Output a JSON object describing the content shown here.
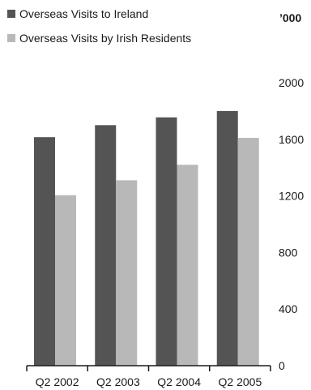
{
  "chart_data": {
    "type": "bar",
    "title": "",
    "xlabel": "",
    "ylabel": "",
    "unit_label": "’000",
    "categories": [
      "Q2 2002",
      "Q2 2003",
      "Q2 2004",
      "Q2 2005"
    ],
    "series": [
      {
        "name": "Overseas Visits to Ireland",
        "color": "#545454",
        "values": [
          1615,
          1700,
          1755,
          1800
        ]
      },
      {
        "name": "Overseas Visits by Irish Residents",
        "color": "#b8b8b8",
        "values": [
          1205,
          1310,
          1420,
          1610
        ]
      }
    ],
    "ylim": [
      0,
      2000
    ],
    "yticks": [
      0,
      400,
      800,
      1200,
      1600,
      2000
    ],
    "ytick_labels": [
      "0",
      "400",
      "800",
      "1200",
      "1600",
      "2000"
    ],
    "legend_position": "top-left",
    "grid": false,
    "axis_side": "right"
  }
}
